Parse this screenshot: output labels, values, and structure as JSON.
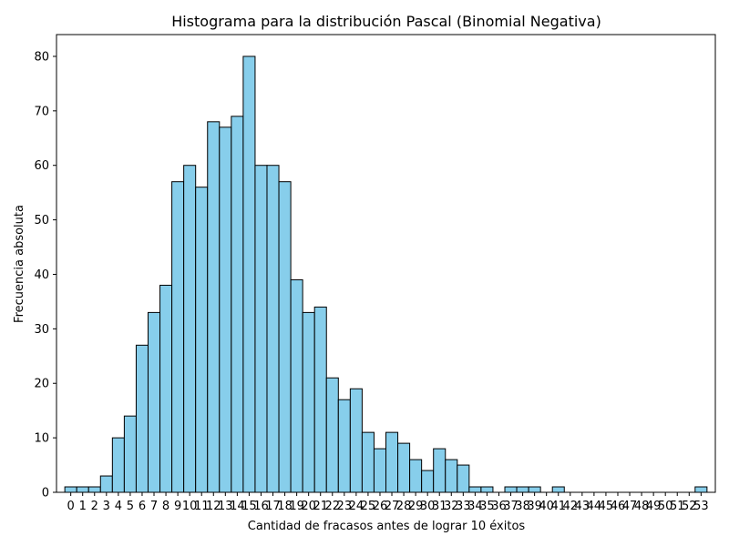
{
  "chart_data": {
    "type": "bar",
    "title": "Histograma para la distribución Pascal (Binomial Negativa)",
    "xlabel": "Cantidad de fracasos antes de lograr 10 éxitos",
    "ylabel": "Frecuencia absoluta",
    "x": [
      0,
      1,
      2,
      3,
      4,
      5,
      6,
      7,
      8,
      9,
      10,
      11,
      12,
      13,
      14,
      15,
      16,
      17,
      18,
      19,
      20,
      21,
      22,
      23,
      24,
      25,
      26,
      27,
      28,
      29,
      30,
      31,
      32,
      33,
      34,
      35,
      36,
      37,
      38,
      39,
      40,
      41,
      42,
      43,
      44,
      45,
      46,
      47,
      48,
      49,
      50,
      51,
      52,
      53
    ],
    "values": [
      1,
      1,
      1,
      3,
      10,
      14,
      27,
      33,
      38,
      57,
      60,
      56,
      68,
      67,
      69,
      80,
      60,
      60,
      57,
      39,
      33,
      34,
      21,
      17,
      19,
      11,
      8,
      11,
      9,
      6,
      4,
      8,
      6,
      5,
      1,
      1,
      0,
      1,
      1,
      1,
      0,
      1,
      0,
      0,
      0,
      0,
      0,
      0,
      0,
      0,
      0,
      0,
      0,
      1
    ],
    "xticks": [
      "0",
      "1",
      "2",
      "3",
      "4",
      "5",
      "6",
      "7",
      "8",
      "9",
      "10",
      "11",
      "12",
      "13",
      "14",
      "15",
      "16",
      "17",
      "18",
      "19",
      "20",
      "21",
      "22",
      "23",
      "24",
      "25",
      "26",
      "27",
      "28",
      "29",
      "30",
      "31",
      "32",
      "33",
      "34",
      "35",
      "36",
      "37",
      "38",
      "39",
      "40",
      "41",
      "42",
      "43",
      "44",
      "45",
      "46",
      "47",
      "48",
      "49",
      "50",
      "51",
      "52",
      "53"
    ],
    "yticks": [
      "0",
      "10",
      "20",
      "30",
      "40",
      "50",
      "60",
      "70",
      "80"
    ],
    "ylim": [
      0,
      84
    ],
    "xlim": [
      -1.2,
      54.2
    ],
    "grid": false,
    "bar_color": "#87ceeb",
    "edge_color": "#000000"
  }
}
